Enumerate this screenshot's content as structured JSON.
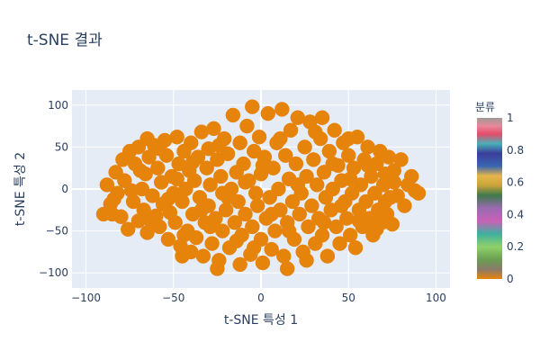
{
  "chart_data": {
    "type": "scatter",
    "title": "t-SNE 결과",
    "xlabel": "t-SNE 특성 1",
    "ylabel": "t-SNE 특성 2",
    "xlim": [
      -108,
      108
    ],
    "ylim": [
      -118,
      118
    ],
    "x_ticks": [
      -100,
      -50,
      0,
      50,
      100
    ],
    "y_ticks": [
      -100,
      -50,
      0,
      50,
      100
    ],
    "grid": true,
    "marker_color": "#e6830b",
    "colorbar": {
      "title": "분류",
      "range": [
        0,
        1
      ],
      "ticks": [
        "0",
        "0.2",
        "0.4",
        "0.6",
        "0.8",
        "1"
      ]
    },
    "points": [
      [
        -88,
        5
      ],
      [
        -85,
        -30
      ],
      [
        -83,
        20
      ],
      [
        -82,
        -5
      ],
      [
        -80,
        -33
      ],
      [
        -78,
        10
      ],
      [
        -76,
        -48
      ],
      [
        -75,
        45
      ],
      [
        -73,
        -15
      ],
      [
        -72,
        30
      ],
      [
        -70,
        -38
      ],
      [
        -70,
        50
      ],
      [
        -68,
        0
      ],
      [
        -67,
        -25
      ],
      [
        -66,
        18
      ],
      [
        -65,
        -52
      ],
      [
        -64,
        38
      ],
      [
        -62,
        -8
      ],
      [
        -61,
        52
      ],
      [
        -60,
        -32
      ],
      [
        -59,
        25
      ],
      [
        -58,
        -45
      ],
      [
        -57,
        8
      ],
      [
        -56,
        -18
      ],
      [
        -55,
        58
      ],
      [
        -54,
        40
      ],
      [
        -53,
        -60
      ],
      [
        -52,
        -28
      ],
      [
        -51,
        15
      ],
      [
        -50,
        -5
      ],
      [
        -49,
        -40
      ],
      [
        -48,
        62
      ],
      [
        -47,
        30
      ],
      [
        -46,
        -68
      ],
      [
        -45,
        -15
      ],
      [
        -44,
        45
      ],
      [
        -43,
        0
      ],
      [
        -42,
        -50
      ],
      [
        -41,
        22
      ],
      [
        -40,
        -75
      ],
      [
        -40,
        55
      ],
      [
        -39,
        -30
      ],
      [
        -38,
        10
      ],
      [
        -37,
        -58
      ],
      [
        -36,
        38
      ],
      [
        -35,
        -10
      ],
      [
        -34,
        68
      ],
      [
        -33,
        -80
      ],
      [
        -32,
        -40
      ],
      [
        -31,
        25
      ],
      [
        -30,
        -20
      ],
      [
        -30,
        48
      ],
      [
        -29,
        5
      ],
      [
        -28,
        -65
      ],
      [
        -27,
        72
      ],
      [
        -26,
        -35
      ],
      [
        -25,
        35
      ],
      [
        -24,
        -85
      ],
      [
        -23,
        15
      ],
      [
        -22,
        -5
      ],
      [
        -22,
        -50
      ],
      [
        -21,
        60
      ],
      [
        -20,
        -25
      ],
      [
        -19,
        42
      ],
      [
        -18,
        -70
      ],
      [
        -17,
        0
      ],
      [
        -16,
        88
      ],
      [
        -15,
        -40
      ],
      [
        -14,
        20
      ],
      [
        -13,
        -15
      ],
      [
        -12,
        -90
      ],
      [
        -12,
        55
      ],
      [
        -11,
        -55
      ],
      [
        -10,
        30
      ],
      [
        -9,
        -30
      ],
      [
        -8,
        75
      ],
      [
        -7,
        10
      ],
      [
        -6,
        -78
      ],
      [
        -5,
        -45
      ],
      [
        -4,
        45
      ],
      [
        -3,
        -5
      ],
      [
        -2,
        -20
      ],
      [
        -1,
        62
      ],
      [
        0,
        -60
      ],
      [
        0,
        18
      ],
      [
        1,
        -88
      ],
      [
        2,
        38
      ],
      [
        3,
        -35
      ],
      [
        4,
        90
      ],
      [
        5,
        -10
      ],
      [
        6,
        -72
      ],
      [
        7,
        25
      ],
      [
        8,
        -50
      ],
      [
        9,
        55
      ],
      [
        10,
        0
      ],
      [
        11,
        -25
      ],
      [
        12,
        95
      ],
      [
        13,
        -80
      ],
      [
        14,
        40
      ],
      [
        15,
        -40
      ],
      [
        16,
        12
      ],
      [
        17,
        70
      ],
      [
        18,
        -15
      ],
      [
        19,
        -60
      ],
      [
        20,
        30
      ],
      [
        21,
        85
      ],
      [
        22,
        -30
      ],
      [
        23,
        -5
      ],
      [
        24,
        -75
      ],
      [
        25,
        50
      ],
      [
        26,
        15
      ],
      [
        27,
        -45
      ],
      [
        28,
        80
      ],
      [
        29,
        -20
      ],
      [
        30,
        35
      ],
      [
        31,
        -65
      ],
      [
        32,
        5
      ],
      [
        33,
        -35
      ],
      [
        34,
        60
      ],
      [
        35,
        -55
      ],
      [
        36,
        20
      ],
      [
        37,
        -10
      ],
      [
        38,
        -80
      ],
      [
        39,
        45
      ],
      [
        40,
        -25
      ],
      [
        41,
        0
      ],
      [
        42,
        70
      ],
      [
        43,
        -45
      ],
      [
        44,
        28
      ],
      [
        45,
        -65
      ],
      [
        46,
        10
      ],
      [
        47,
        55
      ],
      [
        48,
        -15
      ],
      [
        49,
        -35
      ],
      [
        50,
        40
      ],
      [
        51,
        -55
      ],
      [
        52,
        -5
      ],
      [
        53,
        25
      ],
      [
        54,
        -70
      ],
      [
        55,
        62
      ],
      [
        56,
        -25
      ],
      [
        57,
        5
      ],
      [
        58,
        -45
      ],
      [
        59,
        35
      ],
      [
        60,
        -15
      ],
      [
        61,
        50
      ],
      [
        62,
        -35
      ],
      [
        63,
        15
      ],
      [
        64,
        -55
      ],
      [
        65,
        -5
      ],
      [
        66,
        30
      ],
      [
        67,
        -25
      ],
      [
        68,
        45
      ],
      [
        69,
        -40
      ],
      [
        70,
        5
      ],
      [
        71,
        18
      ],
      [
        72,
        -30
      ],
      [
        73,
        38
      ],
      [
        74,
        -10
      ],
      [
        75,
        -42
      ],
      [
        76,
        22
      ],
      [
        78,
        -8
      ],
      [
        80,
        35
      ],
      [
        82,
        -20
      ],
      [
        84,
        5
      ],
      [
        86,
        15
      ],
      [
        88,
        -2
      ],
      [
        90,
        -5
      ],
      [
        -84,
        -12
      ],
      [
        -79,
        35
      ],
      [
        -74,
        -2
      ],
      [
        -69,
        22
      ],
      [
        -63,
        -38
      ],
      [
        -58,
        48
      ],
      [
        -53,
        -12
      ],
      [
        -48,
        12
      ],
      [
        -44,
        -55
      ],
      [
        -39,
        32
      ],
      [
        -34,
        -25
      ],
      [
        -29,
        -45
      ],
      [
        -24,
        52
      ],
      [
        -19,
        -10
      ],
      [
        -14,
        -62
      ],
      [
        -9,
        8
      ],
      [
        -4,
        -70
      ],
      [
        1,
        28
      ],
      [
        6,
        -30
      ],
      [
        11,
        60
      ],
      [
        16,
        -50
      ],
      [
        21,
        5
      ],
      [
        26,
        -85
      ],
      [
        31,
        68
      ],
      [
        36,
        -40
      ],
      [
        41,
        30
      ],
      [
        46,
        -20
      ],
      [
        51,
        12
      ],
      [
        56,
        -38
      ],
      [
        61,
        28
      ],
      [
        66,
        -48
      ],
      [
        71,
        -15
      ],
      [
        76,
        8
      ],
      [
        -65,
        60
      ],
      [
        -45,
        -80
      ],
      [
        -25,
        -95
      ],
      [
        -5,
        98
      ],
      [
        15,
        -95
      ],
      [
        35,
        85
      ],
      [
        50,
        60
      ],
      [
        -90,
        -30
      ],
      [
        -86,
        -18
      ]
    ]
  }
}
